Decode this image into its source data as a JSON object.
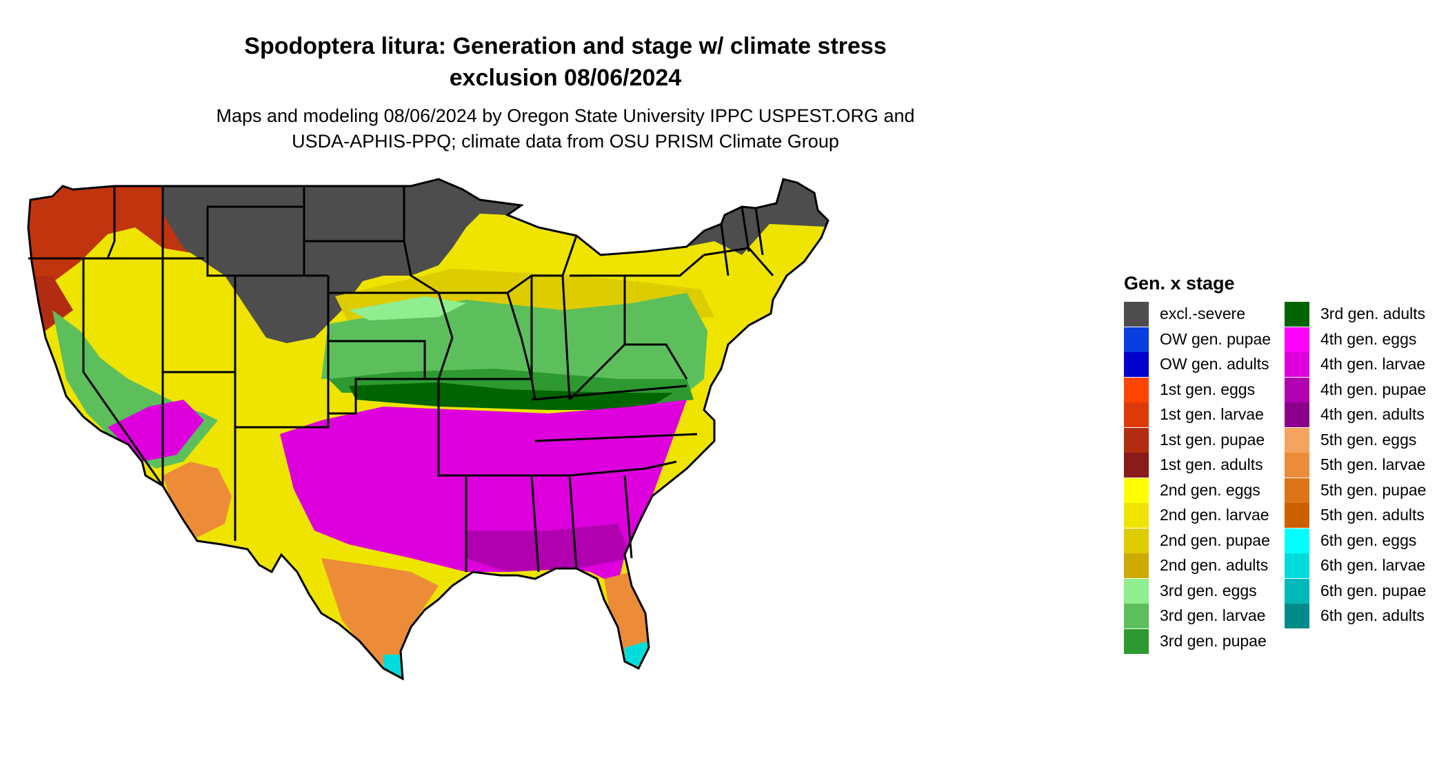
{
  "title_line1": "Spodoptera litura: Generation and stage w/ climate stress",
  "title_line2": "exclusion 08/06/2024",
  "subtitle_line1": "Maps and modeling 08/06/2024 by Oregon State University IPPC USPEST.ORG and",
  "subtitle_line2": "USDA-APHIS-PPQ; climate data from OSU PRISM Climate Group",
  "legend": {
    "title": "Gen. x stage",
    "items": [
      {
        "label": "excl.-severe",
        "color": "#4d4d4d"
      },
      {
        "label": "OW gen. pupae",
        "color": "#0a3ee0"
      },
      {
        "label": "OW gen. adults",
        "color": "#0000cc"
      },
      {
        "label": "1st gen. eggs",
        "color": "#ff4500"
      },
      {
        "label": "1st gen. larvae",
        "color": "#dd3a0a"
      },
      {
        "label": "1st gen. pupae",
        "color": "#b22c12"
      },
      {
        "label": "1st gen. adults",
        "color": "#8b1a1a"
      },
      {
        "label": "2nd gen. eggs",
        "color": "#ffff00"
      },
      {
        "label": "2nd gen. larvae",
        "color": "#eee400"
      },
      {
        "label": "2nd gen. pupae",
        "color": "#ddcc00"
      },
      {
        "label": "2nd gen. adults",
        "color": "#ccaa00"
      },
      {
        "label": "3rd gen. eggs",
        "color": "#90ee90"
      },
      {
        "label": "3rd gen. larvae",
        "color": "#5cbf5c"
      },
      {
        "label": "3rd gen. pupae",
        "color": "#2e9930"
      },
      {
        "label": "3rd gen. adults",
        "color": "#006400"
      },
      {
        "label": "4th gen. eggs",
        "color": "#ff00ff"
      },
      {
        "label": "4th gen. larvae",
        "color": "#dd00dd"
      },
      {
        "label": "4th gen. pupae",
        "color": "#b000b0"
      },
      {
        "label": "4th gen. adults",
        "color": "#8b008b"
      },
      {
        "label": "5th gen. eggs",
        "color": "#f4a460"
      },
      {
        "label": "5th gen. larvae",
        "color": "#ec8c38"
      },
      {
        "label": "5th gen. pupae",
        "color": "#dc7418"
      },
      {
        "label": "5th gen. adults",
        "color": "#cc6000"
      },
      {
        "label": "6th gen. eggs",
        "color": "#00ffff"
      },
      {
        "label": "6th gen. larvae",
        "color": "#00dcdc"
      },
      {
        "label": "6th gen. pupae",
        "color": "#00b8b8"
      },
      {
        "label": "6th gen. adults",
        "color": "#008b8b"
      }
    ]
  }
}
